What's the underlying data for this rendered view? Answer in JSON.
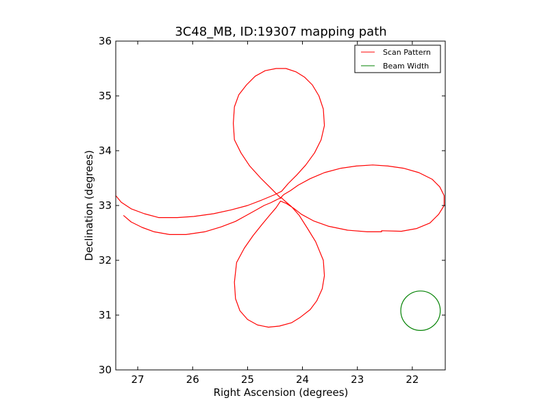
{
  "chart_data": {
    "type": "line",
    "title": "3C48_MB, ID:19307 mapping path",
    "xlabel": "Right Ascension (degrees)",
    "ylabel": "Declination (degrees)",
    "xlim": [
      27.4,
      21.4
    ],
    "ylim": [
      30,
      36
    ],
    "x_inverted": true,
    "xticks": [
      27,
      26,
      25,
      24,
      23,
      22
    ],
    "yticks": [
      30,
      31,
      32,
      33,
      34,
      35,
      36
    ],
    "grid": false,
    "legend_position": "top-right",
    "series": [
      {
        "name": "Scan Pattern",
        "color": "#ff0000",
        "x": [
          27.26,
          27.12,
          26.92,
          26.7,
          26.42,
          26.12,
          25.78,
          25.48,
          25.22,
          25.02,
          24.84,
          24.7,
          24.58,
          24.5,
          24.44,
          24.38,
          24.34,
          24.2,
          24.06,
          23.92,
          23.76,
          23.62,
          23.6,
          23.64,
          23.74,
          23.86,
          24.04,
          24.2,
          24.42,
          24.62,
          24.82,
          25.0,
          25.14,
          25.22,
          25.24,
          25.2,
          25.06,
          24.9,
          24.74,
          24.6,
          24.48,
          24.4,
          24.3,
          24.16,
          24.02,
          23.8,
          23.52,
          23.18,
          22.82,
          22.56,
          22.56,
          22.2,
          21.92,
          21.68,
          21.52,
          21.42,
          21.42,
          21.5,
          21.64,
          21.88,
          22.16,
          22.44,
          22.72,
          23.02,
          23.3,
          23.6,
          23.86,
          24.08,
          24.22,
          24.34,
          24.4,
          24.48,
          24.6,
          24.76,
          24.96,
          25.12,
          25.24,
          25.26,
          25.24,
          25.16,
          25.02,
          24.86,
          24.68,
          24.48,
          24.3,
          24.12,
          23.96,
          23.82,
          23.7,
          23.62,
          23.6,
          23.66,
          23.78,
          23.94,
          24.1,
          24.26,
          24.38,
          24.5,
          24.74,
          25.0,
          25.3,
          25.62,
          25.98,
          26.28,
          26.62,
          26.88,
          27.12,
          27.3,
          27.4,
          27.4
        ],
        "y": [
          32.82,
          32.7,
          32.6,
          32.52,
          32.47,
          32.47,
          32.52,
          32.61,
          32.71,
          32.82,
          32.92,
          33.0,
          33.05,
          33.09,
          33.12,
          33.14,
          33.1,
          32.98,
          32.82,
          32.6,
          32.34,
          32.0,
          31.72,
          31.48,
          31.26,
          31.1,
          30.96,
          30.86,
          30.8,
          30.78,
          30.82,
          30.92,
          31.08,
          31.3,
          31.6,
          31.96,
          32.22,
          32.45,
          32.65,
          32.82,
          32.96,
          33.08,
          33.04,
          32.95,
          32.84,
          32.72,
          32.62,
          32.55,
          32.52,
          32.52,
          32.54,
          32.53,
          32.58,
          32.68,
          32.84,
          33.0,
          33.18,
          33.34,
          33.48,
          33.6,
          33.68,
          33.72,
          33.74,
          33.72,
          33.68,
          33.6,
          33.49,
          33.37,
          33.27,
          33.2,
          33.14,
          33.22,
          33.34,
          33.5,
          33.72,
          33.96,
          34.2,
          34.5,
          34.8,
          35.02,
          35.2,
          35.36,
          35.46,
          35.5,
          35.5,
          35.44,
          35.34,
          35.2,
          35.0,
          34.76,
          34.46,
          34.2,
          33.96,
          33.74,
          33.56,
          33.4,
          33.26,
          33.2,
          33.1,
          33.0,
          32.92,
          32.85,
          32.8,
          32.78,
          32.78,
          32.85,
          32.94,
          33.06,
          33.18,
          33.28
        ]
      },
      {
        "name": "Beam Width",
        "color": "#008000",
        "shape": "circle",
        "center": [
          21.85,
          31.08
        ],
        "radius": 0.36
      }
    ]
  }
}
